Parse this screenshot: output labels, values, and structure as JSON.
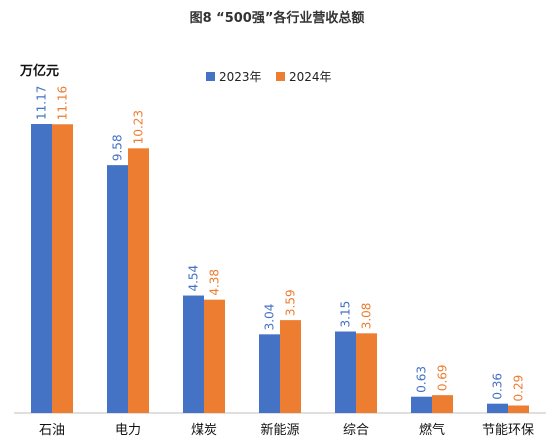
{
  "chart_data": {
    "type": "bar",
    "title": "图8 “500强”各行业营收总额",
    "ylabel": "万亿元",
    "categories": [
      "石油",
      "电力",
      "煤炭",
      "新能源",
      "综合",
      "燃气",
      "节能环保"
    ],
    "series": [
      {
        "name": "2023年",
        "color": "#4472C4",
        "values": [
          11.17,
          9.58,
          4.54,
          3.04,
          3.15,
          0.63,
          0.36
        ]
      },
      {
        "name": "2024年",
        "color": "#ED7D31",
        "values": [
          11.16,
          10.23,
          4.38,
          3.59,
          3.08,
          0.69,
          0.29
        ]
      }
    ],
    "ylim": [
      0,
      11.5
    ],
    "grid": false,
    "legend": "top-center"
  }
}
